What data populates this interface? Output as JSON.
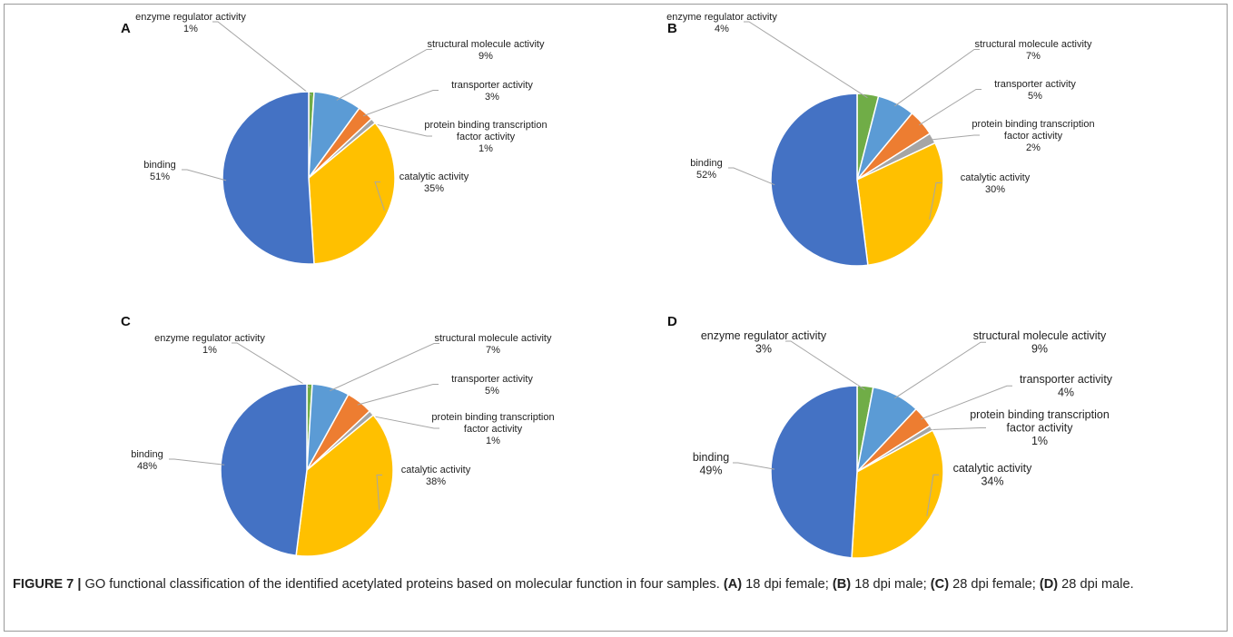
{
  "colors": {
    "binding": "#4472C4",
    "enzyme regulator activity": "#70AD47",
    "structural molecule activity": "#5B9BD5",
    "transporter activity": "#ED7D31",
    "protein binding transcription factor activity": "#A5A5A5",
    "catalytic activity": "#FFC000"
  },
  "chart_data": [
    {
      "type": "pie",
      "panel": "A",
      "slices": [
        {
          "key": "enzyme regulator activity",
          "label": [
            "enzyme regulator activity"
          ],
          "pct": "1%",
          "value": 1
        },
        {
          "key": "structural molecule activity",
          "label": [
            "structural molecule activity"
          ],
          "pct": "9%",
          "value": 9
        },
        {
          "key": "transporter activity",
          "label": [
            "transporter activity"
          ],
          "pct": "3%",
          "value": 3
        },
        {
          "key": "protein binding transcription factor activity",
          "label": [
            "protein binding transcription",
            "factor activity"
          ],
          "pct": "1%",
          "value": 1
        },
        {
          "key": "catalytic activity",
          "label": [
            "catalytic activity"
          ],
          "pct": "35%",
          "value": 35
        },
        {
          "key": "binding",
          "label": [
            "binding"
          ],
          "pct": "51%",
          "value": 51
        }
      ]
    },
    {
      "type": "pie",
      "panel": "B",
      "slices": [
        {
          "key": "enzyme regulator activity",
          "label": [
            "enzyme regulator activity"
          ],
          "pct": "4%",
          "value": 4
        },
        {
          "key": "structural molecule activity",
          "label": [
            "structural molecule activity"
          ],
          "pct": "7%",
          "value": 7
        },
        {
          "key": "transporter activity",
          "label": [
            "transporter activity"
          ],
          "pct": "5%",
          "value": 5
        },
        {
          "key": "protein binding transcription factor activity",
          "label": [
            "protein binding transcription",
            "factor activity"
          ],
          "pct": "2%",
          "value": 2
        },
        {
          "key": "catalytic activity",
          "label": [
            "catalytic activity"
          ],
          "pct": "30%",
          "value": 30
        },
        {
          "key": "binding",
          "label": [
            "binding"
          ],
          "pct": "52%",
          "value": 52
        }
      ]
    },
    {
      "type": "pie",
      "panel": "C",
      "slices": [
        {
          "key": "enzyme regulator activity",
          "label": [
            "enzyme regulator activity"
          ],
          "pct": "1%",
          "value": 1
        },
        {
          "key": "structural molecule activity",
          "label": [
            "structural molecule activity"
          ],
          "pct": "7%",
          "value": 7
        },
        {
          "key": "transporter activity",
          "label": [
            "transporter activity"
          ],
          "pct": "5%",
          "value": 5
        },
        {
          "key": "protein binding transcription factor activity",
          "label": [
            "protein binding transcription",
            "factor activity"
          ],
          "pct": "1%",
          "value": 1
        },
        {
          "key": "catalytic activity",
          "label": [
            "catalytic activity"
          ],
          "pct": "38%",
          "value": 38
        },
        {
          "key": "binding",
          "label": [
            "binding"
          ],
          "pct": "48%",
          "value": 48
        }
      ]
    },
    {
      "type": "pie",
      "panel": "D",
      "slices": [
        {
          "key": "enzyme regulator activity",
          "label": [
            "enzyme regulator activity"
          ],
          "pct": "3%",
          "value": 3
        },
        {
          "key": "structural molecule activity",
          "label": [
            "structural molecule activity"
          ],
          "pct": "9%",
          "value": 9
        },
        {
          "key": "transporter activity",
          "label": [
            "transporter activity"
          ],
          "pct": "4%",
          "value": 4
        },
        {
          "key": "protein binding transcription factor activity",
          "label": [
            "protein binding transcription",
            "factor activity"
          ],
          "pct": "1%",
          "value": 1
        },
        {
          "key": "catalytic activity",
          "label": [
            "catalytic activity"
          ],
          "pct": "34%",
          "value": 34
        },
        {
          "key": "binding",
          "label": [
            "binding"
          ],
          "pct": "49%",
          "value": 49
        }
      ]
    }
  ],
  "caption": {
    "figure_label": "FIGURE 7 |",
    "text": " GO functional classification of the identified acetylated proteins based on molecular function in four samples. ",
    "a_label": "(A)",
    "a_text": " 18 dpi female; ",
    "b_label": "(B)",
    "b_text": " 18 dpi male; ",
    "c_label": "(C)",
    "c_text": " 28 dpi female; ",
    "d_label": "(D)",
    "d_text": " 28 dpi male."
  }
}
